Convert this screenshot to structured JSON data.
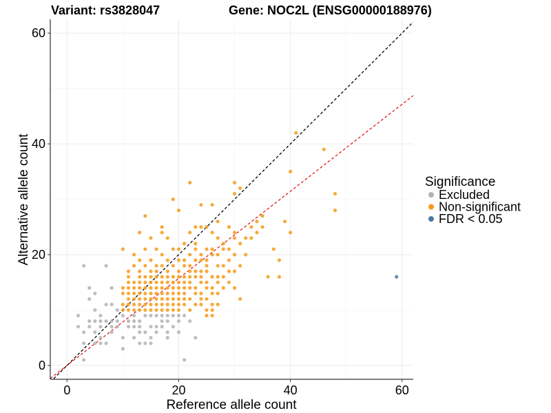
{
  "chart_data": {
    "type": "scatter",
    "title_left": "Variant: rs3828047",
    "title_right": "Gene: NOC2L (ENSG00000188976)",
    "xlabel": "Reference allele count",
    "ylabel": "Alternative allele count",
    "xlim": [
      -3,
      62
    ],
    "ylim": [
      -2.5,
      62.5
    ],
    "xticks": [
      0,
      20,
      40,
      60
    ],
    "yticks": [
      0,
      20,
      40,
      60
    ],
    "grid": true,
    "legend": {
      "title": "Significance",
      "placement": "right",
      "entries": [
        {
          "label": "Excluded",
          "color": "#b3b3b3"
        },
        {
          "label": "Non-significant",
          "color": "#f59b1a"
        },
        {
          "label": "FDR < 0.05",
          "color": "#4a79a5"
        }
      ]
    },
    "reference_lines": [
      {
        "name": "identity",
        "slope": 1,
        "intercept": 0,
        "color": "#000000",
        "dash": true
      },
      {
        "name": "fit",
        "slope": 0.786,
        "intercept": 0,
        "color": "#e41a1c",
        "dash": true
      }
    ],
    "series": [
      {
        "group": "Excluded",
        "color": "#b3b3b3",
        "points": [
          [
            2,
            9
          ],
          [
            2,
            7
          ],
          [
            3,
            18
          ],
          [
            3,
            6
          ],
          [
            3,
            4
          ],
          [
            3,
            1
          ],
          [
            4,
            14
          ],
          [
            4,
            12
          ],
          [
            4,
            8
          ],
          [
            4,
            7
          ],
          [
            5,
            13
          ],
          [
            5,
            10
          ],
          [
            5,
            8
          ],
          [
            5,
            6
          ],
          [
            5,
            4
          ],
          [
            6,
            9
          ],
          [
            6,
            8
          ],
          [
            6,
            7
          ],
          [
            6,
            5
          ],
          [
            6,
            4
          ],
          [
            7,
            18
          ],
          [
            7,
            11
          ],
          [
            7,
            8
          ],
          [
            7,
            4
          ],
          [
            8,
            14
          ],
          [
            8,
            11
          ],
          [
            8,
            8
          ],
          [
            8,
            7
          ],
          [
            8,
            6
          ],
          [
            9,
            10
          ],
          [
            9,
            8
          ],
          [
            9,
            7
          ],
          [
            10,
            9
          ],
          [
            10,
            5
          ],
          [
            10,
            3
          ],
          [
            11,
            8
          ],
          [
            11,
            7
          ],
          [
            12,
            9
          ],
          [
            12,
            8
          ],
          [
            12,
            7
          ],
          [
            12,
            5
          ],
          [
            13,
            8
          ],
          [
            13,
            7
          ],
          [
            13,
            6
          ],
          [
            13,
            4
          ],
          [
            14,
            9
          ],
          [
            14,
            6
          ],
          [
            14,
            4
          ],
          [
            15,
            9
          ],
          [
            15,
            7
          ],
          [
            15,
            5
          ],
          [
            15,
            4
          ],
          [
            16,
            9
          ],
          [
            16,
            7
          ],
          [
            16,
            6
          ],
          [
            17,
            9
          ],
          [
            17,
            8
          ],
          [
            17,
            7
          ],
          [
            18,
            9
          ],
          [
            18,
            8
          ],
          [
            18,
            6
          ],
          [
            18,
            5
          ],
          [
            19,
            9
          ],
          [
            19,
            7
          ],
          [
            20,
            9
          ],
          [
            20,
            8
          ],
          [
            20,
            6
          ],
          [
            21,
            9
          ],
          [
            21,
            1
          ],
          [
            22,
            8
          ],
          [
            23,
            5
          ]
        ]
      },
      {
        "group": "Non-significant",
        "color": "#f59b1a",
        "points": [
          [
            10,
            21
          ],
          [
            10,
            14
          ],
          [
            10,
            13
          ],
          [
            10,
            11
          ],
          [
            10,
            10
          ],
          [
            11,
            17
          ],
          [
            11,
            16
          ],
          [
            11,
            15
          ],
          [
            11,
            14
          ],
          [
            11,
            13
          ],
          [
            11,
            12
          ],
          [
            11,
            11
          ],
          [
            11,
            10
          ],
          [
            12,
            20
          ],
          [
            12,
            18
          ],
          [
            12,
            15
          ],
          [
            12,
            14
          ],
          [
            12,
            13
          ],
          [
            12,
            12
          ],
          [
            12,
            11
          ],
          [
            12,
            10
          ],
          [
            13,
            24
          ],
          [
            13,
            19
          ],
          [
            13,
            17
          ],
          [
            13,
            16
          ],
          [
            13,
            15
          ],
          [
            13,
            14
          ],
          [
            13,
            13
          ],
          [
            13,
            12
          ],
          [
            13,
            11
          ],
          [
            13,
            10
          ],
          [
            14,
            27
          ],
          [
            14,
            21
          ],
          [
            14,
            18
          ],
          [
            14,
            16
          ],
          [
            14,
            15
          ],
          [
            14,
            14
          ],
          [
            14,
            13
          ],
          [
            14,
            12
          ],
          [
            14,
            11
          ],
          [
            14,
            10
          ],
          [
            15,
            23
          ],
          [
            15,
            19
          ],
          [
            15,
            17
          ],
          [
            15,
            16
          ],
          [
            15,
            15
          ],
          [
            15,
            14
          ],
          [
            15,
            13
          ],
          [
            15,
            12
          ],
          [
            15,
            11
          ],
          [
            15,
            10
          ],
          [
            16,
            21
          ],
          [
            16,
            18
          ],
          [
            16,
            17
          ],
          [
            16,
            16
          ],
          [
            16,
            15
          ],
          [
            16,
            14
          ],
          [
            16,
            13
          ],
          [
            16,
            12
          ],
          [
            16,
            11
          ],
          [
            16,
            10
          ],
          [
            17,
            25
          ],
          [
            17,
            24
          ],
          [
            17,
            20
          ],
          [
            17,
            18
          ],
          [
            17,
            16
          ],
          [
            17,
            15
          ],
          [
            17,
            14
          ],
          [
            17,
            13
          ],
          [
            17,
            12
          ],
          [
            17,
            11
          ],
          [
            17,
            10
          ],
          [
            18,
            23
          ],
          [
            18,
            19
          ],
          [
            18,
            17
          ],
          [
            18,
            16
          ],
          [
            18,
            15
          ],
          [
            18,
            14
          ],
          [
            18,
            13
          ],
          [
            18,
            12
          ],
          [
            18,
            11
          ],
          [
            18,
            10
          ],
          [
            19,
            30
          ],
          [
            19,
            21
          ],
          [
            19,
            18
          ],
          [
            19,
            16
          ],
          [
            19,
            15
          ],
          [
            19,
            14
          ],
          [
            19,
            13
          ],
          [
            19,
            12
          ],
          [
            19,
            11
          ],
          [
            19,
            10
          ],
          [
            20,
            28
          ],
          [
            20,
            21
          ],
          [
            20,
            19
          ],
          [
            20,
            17
          ],
          [
            20,
            16
          ],
          [
            20,
            15
          ],
          [
            20,
            14
          ],
          [
            20,
            13
          ],
          [
            20,
            12
          ],
          [
            20,
            11
          ],
          [
            20,
            10
          ],
          [
            21,
            22
          ],
          [
            21,
            19
          ],
          [
            21,
            18
          ],
          [
            21,
            16
          ],
          [
            21,
            15
          ],
          [
            21,
            14
          ],
          [
            21,
            13
          ],
          [
            21,
            12
          ],
          [
            21,
            11
          ],
          [
            22,
            33
          ],
          [
            22,
            24
          ],
          [
            22,
            20
          ],
          [
            22,
            18
          ],
          [
            22,
            17
          ],
          [
            22,
            16
          ],
          [
            22,
            15
          ],
          [
            22,
            14
          ],
          [
            22,
            12
          ],
          [
            22,
            10
          ],
          [
            23,
            25
          ],
          [
            23,
            22
          ],
          [
            23,
            21
          ],
          [
            23,
            19
          ],
          [
            23,
            17
          ],
          [
            23,
            16
          ],
          [
            23,
            14
          ],
          [
            23,
            13
          ],
          [
            23,
            11
          ],
          [
            24,
            29
          ],
          [
            24,
            25
          ],
          [
            24,
            20
          ],
          [
            24,
            19
          ],
          [
            24,
            17
          ],
          [
            24,
            16
          ],
          [
            24,
            15
          ],
          [
            24,
            13
          ],
          [
            24,
            12
          ],
          [
            24,
            11
          ],
          [
            25,
            25
          ],
          [
            25,
            21
          ],
          [
            25,
            19
          ],
          [
            25,
            18
          ],
          [
            25,
            17
          ],
          [
            25,
            15
          ],
          [
            25,
            14
          ],
          [
            25,
            12
          ],
          [
            25,
            10
          ],
          [
            25,
            9
          ],
          [
            26,
            29
          ],
          [
            26,
            24
          ],
          [
            26,
            21
          ],
          [
            26,
            20
          ],
          [
            26,
            16
          ],
          [
            26,
            14
          ],
          [
            26,
            13
          ],
          [
            26,
            11
          ],
          [
            26,
            10
          ],
          [
            26,
            9
          ],
          [
            27,
            26
          ],
          [
            27,
            23
          ],
          [
            27,
            20
          ],
          [
            27,
            18
          ],
          [
            27,
            16
          ],
          [
            27,
            15
          ],
          [
            27,
            13
          ],
          [
            27,
            11
          ],
          [
            28,
            22
          ],
          [
            28,
            21
          ],
          [
            28,
            18
          ],
          [
            28,
            16
          ],
          [
            28,
            14
          ],
          [
            29,
            25
          ],
          [
            29,
            21
          ],
          [
            29,
            19
          ],
          [
            29,
            17
          ],
          [
            29,
            15
          ],
          [
            30,
            33
          ],
          [
            30,
            31
          ],
          [
            30,
            24
          ],
          [
            30,
            23
          ],
          [
            30,
            20
          ],
          [
            30,
            17
          ],
          [
            30,
            14
          ],
          [
            31,
            32
          ],
          [
            31,
            22
          ],
          [
            31,
            18
          ],
          [
            31,
            12
          ],
          [
            32,
            23
          ],
          [
            32,
            20
          ],
          [
            33,
            23
          ],
          [
            33,
            25
          ],
          [
            34,
            26
          ],
          [
            34,
            24
          ],
          [
            35,
            27
          ],
          [
            35,
            25
          ],
          [
            36,
            16
          ],
          [
            37,
            21
          ],
          [
            38,
            19
          ],
          [
            38,
            16
          ],
          [
            39,
            26
          ],
          [
            40,
            35
          ],
          [
            40,
            24
          ],
          [
            41,
            42
          ],
          [
            46,
            39
          ],
          [
            48,
            31
          ],
          [
            48,
            28
          ]
        ]
      },
      {
        "group": "FDR < 0.05",
        "color": "#4a79a5",
        "points": [
          [
            59,
            16
          ]
        ]
      }
    ]
  }
}
